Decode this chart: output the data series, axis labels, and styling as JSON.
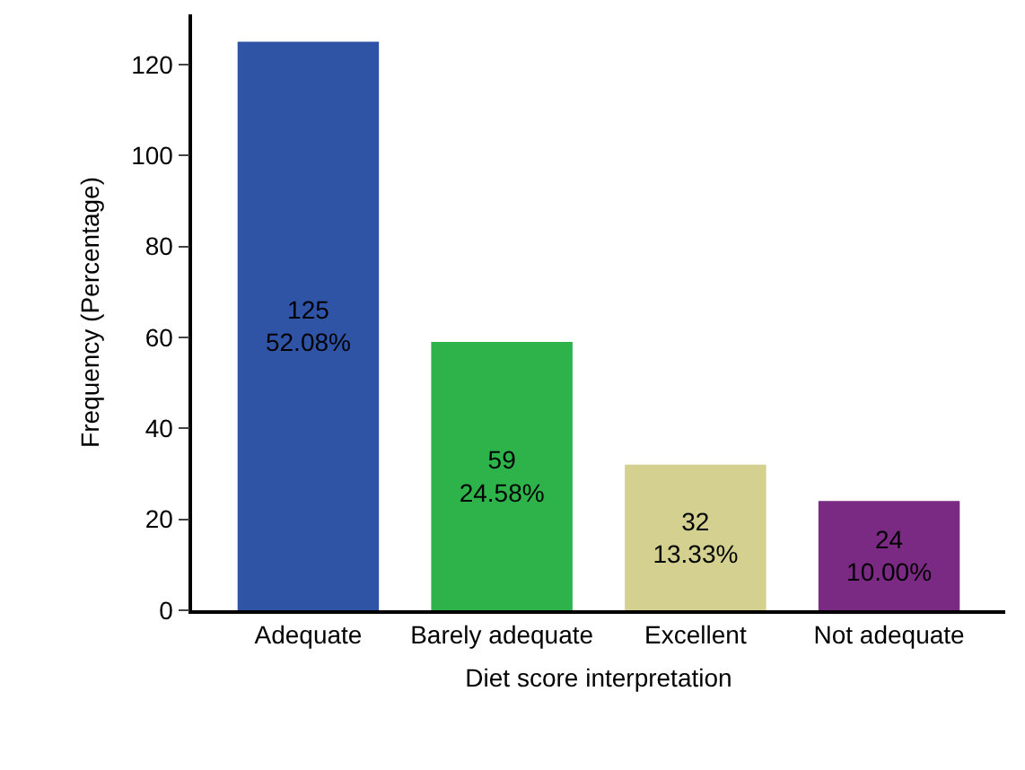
{
  "chart_data": {
    "type": "bar",
    "xlabel": "Diet score interpretation",
    "ylabel": "Frequency (Percentage)",
    "categories": [
      "Adequate",
      "Barely adequate",
      "Excellent",
      "Not adequate"
    ],
    "values": [
      125,
      59,
      32,
      24
    ],
    "colors": [
      "#2f53a5",
      "#2db34a",
      "#d4d08f",
      "#7a2a82"
    ],
    "value_labels": [
      "125\n52.08%",
      "59\n24.58%",
      "32\n13.33%",
      "24\n10.00%"
    ],
    "ylim": [
      0,
      131
    ],
    "yticks": [
      0,
      20,
      40,
      60,
      80,
      100,
      120
    ]
  }
}
